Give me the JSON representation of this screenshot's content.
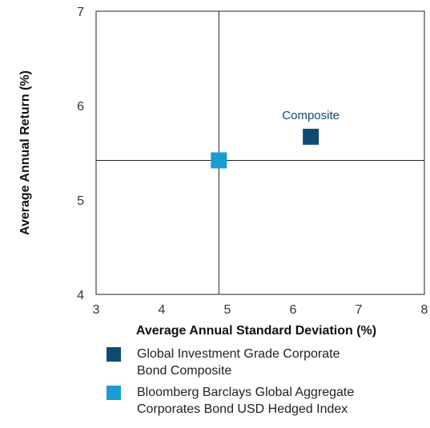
{
  "chart_data": {
    "type": "scatter",
    "xlabel": "Average Annual Standard Deviation (%)",
    "ylabel": "Average Annual Return (%)",
    "xlim": [
      3,
      8
    ],
    "ylim": [
      4,
      7
    ],
    "xticks": [
      "3",
      "4",
      "5",
      "6",
      "7",
      "8"
    ],
    "yticks": [
      "4",
      "5",
      "6",
      "7"
    ],
    "grid": false,
    "crosshair": {
      "x": 4.87,
      "y": 5.42
    },
    "series": [
      {
        "name": "Global Investment Grade Corporate\nBond Composite",
        "x": 6.27,
        "y": 5.67,
        "color": "#0f4a73",
        "marker": "square"
      },
      {
        "name": "Bloomberg Barclays Global Aggregate\nCorporates Bond USD Hedged Index",
        "x": 4.87,
        "y": 5.42,
        "color": "#1a9bd1",
        "marker": "square"
      }
    ],
    "annotations": [
      {
        "text": "Composite",
        "x": 6.27,
        "y": 5.9,
        "color": "#0f4a73"
      }
    ],
    "legend_position": "bottom"
  }
}
